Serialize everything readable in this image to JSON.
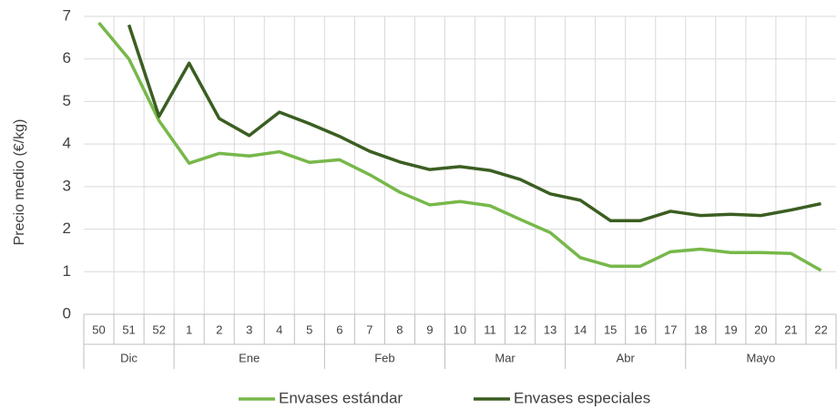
{
  "chart_data": {
    "type": "line",
    "y_label": "Precio medio (€/kg)",
    "categories": [
      "50",
      "51",
      "52",
      "1",
      "2",
      "3",
      "4",
      "5",
      "6",
      "7",
      "8",
      "9",
      "10",
      "11",
      "12",
      "13",
      "14",
      "15",
      "16",
      "17",
      "18",
      "19",
      "20",
      "21",
      "22"
    ],
    "months": [
      "Dic",
      "Dic",
      "Dic",
      "Ene",
      "Ene",
      "Ene",
      "Ene",
      "Ene",
      "Feb",
      "Feb",
      "Feb",
      "Feb",
      "Mar",
      "Mar",
      "Mar",
      "Mar",
      "Abr",
      "Abr",
      "Abr",
      "Abr",
      "Mayo",
      "Mayo",
      "Mayo",
      "Mayo",
      "Mayo"
    ],
    "series": [
      {
        "name": "Envases estándar",
        "color": "#77b84a",
        "values": [
          6.85,
          6.0,
          4.55,
          3.55,
          3.78,
          3.72,
          3.82,
          3.57,
          3.63,
          3.28,
          2.87,
          2.57,
          2.65,
          2.55,
          2.23,
          1.92,
          1.33,
          1.13,
          1.13,
          1.47,
          1.53,
          1.45,
          1.45,
          1.43,
          1.03
        ]
      },
      {
        "name": "Envases especiales",
        "color": "#3b5e21",
        "values": [
          null,
          6.8,
          4.65,
          5.9,
          4.6,
          4.2,
          4.75,
          4.48,
          4.18,
          3.83,
          3.58,
          3.4,
          3.47,
          3.38,
          3.17,
          2.83,
          2.68,
          2.2,
          2.2,
          2.42,
          2.32,
          2.35,
          2.32,
          2.45,
          2.6
        ]
      }
    ],
    "ylim": [
      0,
      7
    ],
    "yticks": [
      0,
      1,
      2,
      3,
      4,
      5,
      6,
      7
    ],
    "grid": true,
    "legend": "bottom"
  }
}
